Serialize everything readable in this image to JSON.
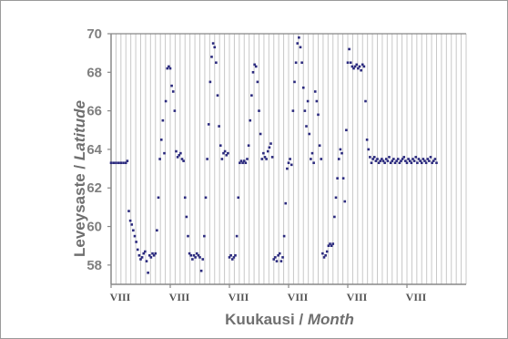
{
  "chart_data": {
    "type": "scatter",
    "ylabel_fi": "Leveysaste",
    "ylabel_sep": " / ",
    "ylabel_en": "Latitude",
    "xlabel_fi": "Kuukausi",
    "xlabel_sep": " / ",
    "xlabel_en": "Month",
    "ylim": [
      57,
      70
    ],
    "yticks": [
      58,
      60,
      62,
      64,
      66,
      68,
      70
    ],
    "xlim": [
      0,
      72
    ],
    "xtick_positions": [
      0,
      12,
      24,
      36,
      48,
      60
    ],
    "xtick_labels": [
      "VIII",
      "VIII",
      "VIII",
      "VIII",
      "VIII",
      "VIII"
    ],
    "grid": "vertical",
    "series": [
      {
        "color": "#2b2a7e",
        "x": [
          0.0,
          0.5,
          1.0,
          1.5,
          2.0,
          2.5,
          3.0,
          3.3,
          3.6,
          3.9,
          4.2,
          4.5,
          4.8,
          5.1,
          5.4,
          5.7,
          6.0,
          6.3,
          6.6,
          6.9,
          7.2,
          7.5,
          7.8,
          8.1,
          8.4,
          8.7,
          9.0,
          9.3,
          9.6,
          9.9,
          10.2,
          10.5,
          10.8,
          11.1,
          11.4,
          11.7,
          12.0,
          12.3,
          12.6,
          12.9,
          13.2,
          13.5,
          13.8,
          14.1,
          14.4,
          14.7,
          15.0,
          15.3,
          15.6,
          15.9,
          16.2,
          16.5,
          16.8,
          17.1,
          17.4,
          17.7,
          18.0,
          18.3,
          18.6,
          18.9,
          19.2,
          19.5,
          19.8,
          20.1,
          20.4,
          20.7,
          21.0,
          21.3,
          21.6,
          21.9,
          22.2,
          22.5,
          22.8,
          23.1,
          23.4,
          23.7,
          24.0,
          24.3,
          24.6,
          24.9,
          25.2,
          25.5,
          25.8,
          26.1,
          26.4,
          26.7,
          27.0,
          27.3,
          27.6,
          27.9,
          28.2,
          28.5,
          28.8,
          29.1,
          29.4,
          29.7,
          30.0,
          30.3,
          30.6,
          30.9,
          31.2,
          31.5,
          31.8,
          32.1,
          32.4,
          32.7,
          33.0,
          33.3,
          33.6,
          33.9,
          34.2,
          34.5,
          34.8,
          35.1,
          35.4,
          35.7,
          36.0,
          36.3,
          36.6,
          36.9,
          37.2,
          37.5,
          37.8,
          38.1,
          38.4,
          38.7,
          39.0,
          39.3,
          39.6,
          39.9,
          40.2,
          40.5,
          40.8,
          41.1,
          41.4,
          41.7,
          42.0,
          42.3,
          42.6,
          42.9,
          43.2,
          43.5,
          43.8,
          44.1,
          44.4,
          44.7,
          45.0,
          45.3,
          45.6,
          45.9,
          46.2,
          46.5,
          46.8,
          47.1,
          47.4,
          47.7,
          48.0,
          48.3,
          48.6,
          48.9,
          49.2,
          49.5,
          49.8,
          50.1,
          50.4,
          50.7,
          51.0,
          51.3,
          51.6,
          51.9,
          52.2,
          52.5,
          52.8,
          53.1,
          53.4,
          53.7,
          54.0,
          54.3,
          54.6,
          54.9,
          55.2,
          55.5,
          55.8,
          56.1,
          56.4,
          56.7,
          57.0,
          57.3,
          57.6,
          57.9,
          58.2,
          58.5,
          58.8,
          59.1,
          59.4,
          59.7,
          60.0,
          60.3,
          60.6,
          60.9,
          61.2,
          61.5,
          61.8,
          62.1,
          62.4,
          62.7,
          63.0,
          63.3,
          63.6,
          63.9,
          64.2,
          64.5,
          64.8,
          65.1,
          65.4,
          65.7,
          66.0
        ],
        "y": [
          63.3,
          63.3,
          63.3,
          63.3,
          63.3,
          63.3,
          63.3,
          63.4,
          60.8,
          60.3,
          60.1,
          59.8,
          59.5,
          59.2,
          58.8,
          58.5,
          58.3,
          58.4,
          58.6,
          58.7,
          58.2,
          57.6,
          58.5,
          58.4,
          58.6,
          58.5,
          58.6,
          59.8,
          61.5,
          63.5,
          64.5,
          65.5,
          63.8,
          66.5,
          68.2,
          68.3,
          68.2,
          67.3,
          67.0,
          66.0,
          63.9,
          63.6,
          63.7,
          63.8,
          63.5,
          63.4,
          61.5,
          60.5,
          59.5,
          58.6,
          58.5,
          58.3,
          58.5,
          58.4,
          58.6,
          58.5,
          58.4,
          57.7,
          58.3,
          59.5,
          61.5,
          63.5,
          65.3,
          67.5,
          68.8,
          69.5,
          69.3,
          68.5,
          66.8,
          65.2,
          64.2,
          63.5,
          63.8,
          63.9,
          63.7,
          63.8,
          58.4,
          58.5,
          58.3,
          58.4,
          58.5,
          59.5,
          61.5,
          63.3,
          63.4,
          63.3,
          63.4,
          63.3,
          63.5,
          64.2,
          65.5,
          66.8,
          68.0,
          68.4,
          68.3,
          67.5,
          66.0,
          64.8,
          63.5,
          63.8,
          63.6,
          63.5,
          63.9,
          64.1,
          64.3,
          63.6,
          58.3,
          58.4,
          58.2,
          58.5,
          58.6,
          58.2,
          58.4,
          59.5,
          61.2,
          63.0,
          63.3,
          63.5,
          63.2,
          66.0,
          67.5,
          68.5,
          69.5,
          69.8,
          69.3,
          68.5,
          67.2,
          66.0,
          65.2,
          66.5,
          64.8,
          63.5,
          63.8,
          63.3,
          67.0,
          66.5,
          65.8,
          64.2,
          63.5,
          58.6,
          58.4,
          58.5,
          58.7,
          59.0,
          59.1,
          59.0,
          59.1,
          60.5,
          61.5,
          62.5,
          63.5,
          64.0,
          63.8,
          62.5,
          61.3,
          65.0,
          68.5,
          69.2,
          68.5,
          68.3,
          68.2,
          68.3,
          68.4,
          68.2,
          68.3,
          68.1,
          68.4,
          68.3,
          66.5,
          64.5,
          64.0,
          63.6,
          63.3,
          63.5,
          63.6,
          63.4,
          63.5,
          63.3,
          63.4,
          63.5,
          63.4,
          63.3,
          63.5,
          63.4,
          63.6,
          63.3,
          63.4,
          63.5,
          63.3,
          63.4,
          63.5,
          63.3,
          63.4,
          63.5,
          63.6,
          63.4,
          63.3,
          63.5,
          63.4,
          63.3,
          63.5,
          63.4,
          63.6,
          63.3,
          63.5,
          63.4,
          63.3,
          63.5,
          63.4,
          63.3,
          63.5,
          63.4,
          63.6,
          63.3,
          63.4,
          63.5,
          63.3
        ]
      }
    ]
  }
}
